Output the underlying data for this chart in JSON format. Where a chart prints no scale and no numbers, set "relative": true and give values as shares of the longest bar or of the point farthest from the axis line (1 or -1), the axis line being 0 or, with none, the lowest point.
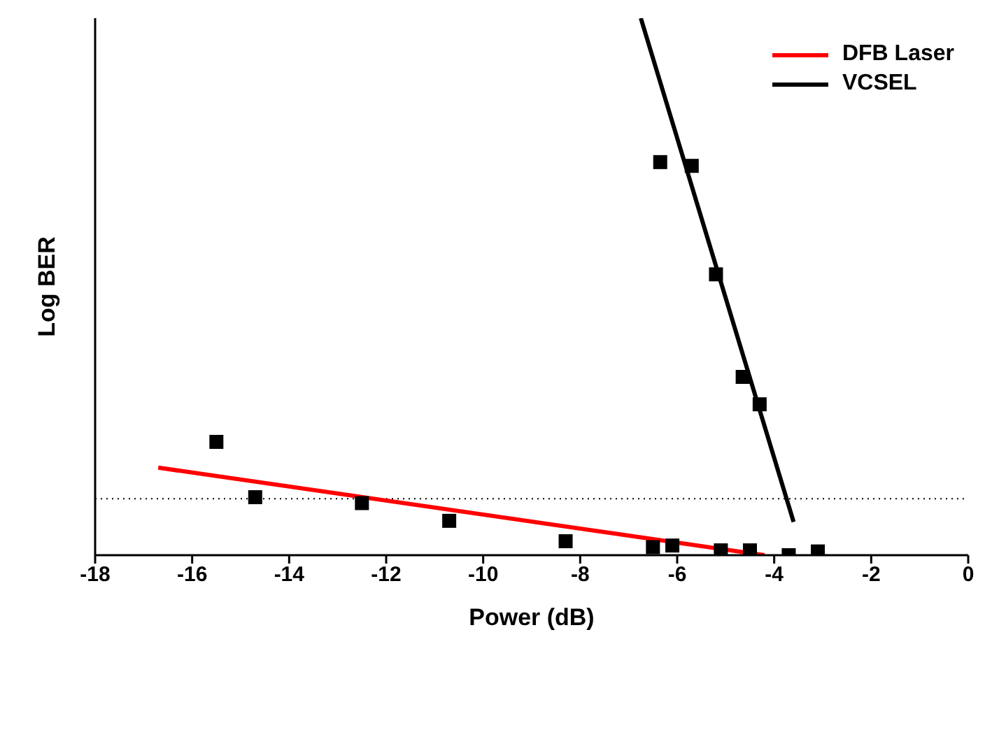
{
  "chart_data": {
    "type": "scatter",
    "xlabel": "Power (dB)",
    "ylabel": "Log BER",
    "relative": true,
    "xlim": [
      -18,
      0
    ],
    "xticks": [
      -18,
      -16,
      -14,
      -12,
      -10,
      -8,
      -6,
      -4,
      -2,
      0
    ],
    "grid": false,
    "legend": "top right",
    "marker": "square",
    "series": [
      {
        "type": "line",
        "name": "DFB Laser",
        "color": "#ff0000",
        "marker": "none",
        "line_style": "solid",
        "x": [
          -16.7,
          -4.2
        ],
        "values": [
          0.163,
          0
        ]
      },
      {
        "type": "line",
        "name": "VCSEL",
        "color": "#000000",
        "marker": "none",
        "line_style": "solid",
        "x": [
          -6.75,
          -3.6
        ],
        "values": [
          1,
          0.062
        ]
      },
      {
        "color": "#000000",
        "x": [
          -15.5,
          -14.7,
          -12.5,
          -10.7,
          -8.3,
          -6.5,
          -6.1,
          -5.1,
          -4.5,
          -3.7,
          -3.1,
          -6.35,
          -5.7,
          -5.2,
          -4.65,
          -4.3
        ],
        "values": [
          0.211,
          0.108,
          0.097,
          0.064,
          0.026,
          0.015,
          0.018,
          0.009,
          0.009,
          0,
          0.007,
          0.732,
          0.725,
          0.523,
          0.332,
          0.281
        ]
      }
    ],
    "ref_lines": [
      {
        "axis": "y",
        "value": 0.105,
        "color": "#000000",
        "line_style": "dotted"
      }
    ]
  }
}
